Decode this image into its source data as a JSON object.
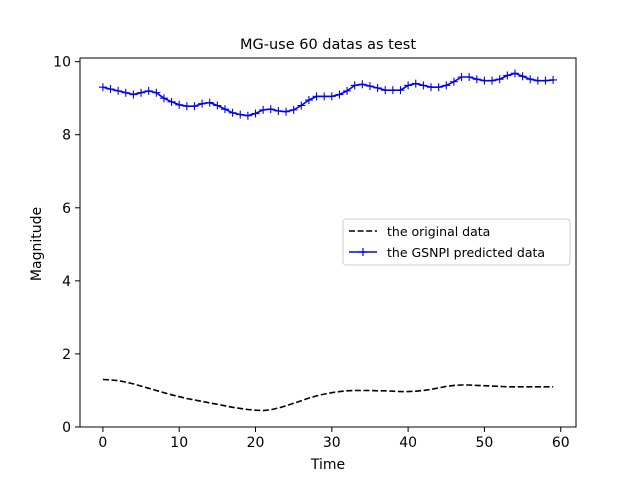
{
  "chart_data": {
    "type": "line",
    "title": "MG-use 60 datas as test",
    "xlabel": "Time",
    "ylabel": "Magnitude",
    "xlim": [
      -3,
      62
    ],
    "ylim": [
      0,
      10.1
    ],
    "xticks": [
      0,
      10,
      20,
      30,
      40,
      50,
      60
    ],
    "yticks": [
      0,
      2,
      4,
      6,
      8,
      10
    ],
    "grid": false,
    "legend": {
      "position": "center-right"
    },
    "series": [
      {
        "name": "the original data",
        "color": "#000000",
        "style": "dashed",
        "marker": "none",
        "x": [
          0,
          1,
          2,
          3,
          4,
          5,
          6,
          7,
          8,
          9,
          10,
          11,
          12,
          13,
          14,
          15,
          16,
          17,
          18,
          19,
          20,
          21,
          22,
          23,
          24,
          25,
          26,
          27,
          28,
          29,
          30,
          31,
          32,
          33,
          34,
          35,
          36,
          37,
          38,
          39,
          40,
          41,
          42,
          43,
          44,
          45,
          46,
          47,
          48,
          49,
          50,
          51,
          52,
          53,
          54,
          55,
          56,
          57,
          58,
          59
        ],
        "y": [
          1.3,
          1.29,
          1.27,
          1.23,
          1.18,
          1.12,
          1.06,
          1.0,
          0.94,
          0.88,
          0.83,
          0.78,
          0.74,
          0.7,
          0.66,
          0.62,
          0.58,
          0.54,
          0.51,
          0.48,
          0.46,
          0.45,
          0.47,
          0.52,
          0.58,
          0.65,
          0.72,
          0.79,
          0.85,
          0.9,
          0.94,
          0.97,
          0.99,
          1.0,
          1.0,
          1.0,
          0.99,
          0.99,
          0.98,
          0.97,
          0.97,
          0.98,
          1.0,
          1.03,
          1.07,
          1.11,
          1.14,
          1.15,
          1.15,
          1.14,
          1.13,
          1.12,
          1.11,
          1.1,
          1.1,
          1.1,
          1.1,
          1.1,
          1.1,
          1.1
        ]
      },
      {
        "name": "the GSNPI predicted data",
        "color": "#0000ff",
        "style": "solid",
        "marker": "plus",
        "x": [
          0,
          1,
          2,
          3,
          4,
          5,
          6,
          7,
          8,
          9,
          10,
          11,
          12,
          13,
          14,
          15,
          16,
          17,
          18,
          19,
          20,
          21,
          22,
          23,
          24,
          25,
          26,
          27,
          28,
          29,
          30,
          31,
          32,
          33,
          34,
          35,
          36,
          37,
          38,
          39,
          40,
          41,
          42,
          43,
          44,
          45,
          46,
          47,
          48,
          49,
          50,
          51,
          52,
          53,
          54,
          55,
          56,
          57,
          58,
          59
        ],
        "y": [
          9.3,
          9.25,
          9.2,
          9.15,
          9.1,
          9.15,
          9.2,
          9.15,
          9.0,
          8.9,
          8.82,
          8.78,
          8.78,
          8.85,
          8.88,
          8.8,
          8.7,
          8.6,
          8.55,
          8.52,
          8.58,
          8.68,
          8.7,
          8.65,
          8.63,
          8.68,
          8.8,
          8.95,
          9.05,
          9.05,
          9.05,
          9.1,
          9.2,
          9.35,
          9.38,
          9.33,
          9.28,
          9.22,
          9.22,
          9.22,
          9.35,
          9.4,
          9.35,
          9.3,
          9.3,
          9.35,
          9.45,
          9.58,
          9.58,
          9.52,
          9.48,
          9.48,
          9.52,
          9.62,
          9.68,
          9.6,
          9.52,
          9.48,
          9.48,
          9.5
        ]
      }
    ]
  }
}
